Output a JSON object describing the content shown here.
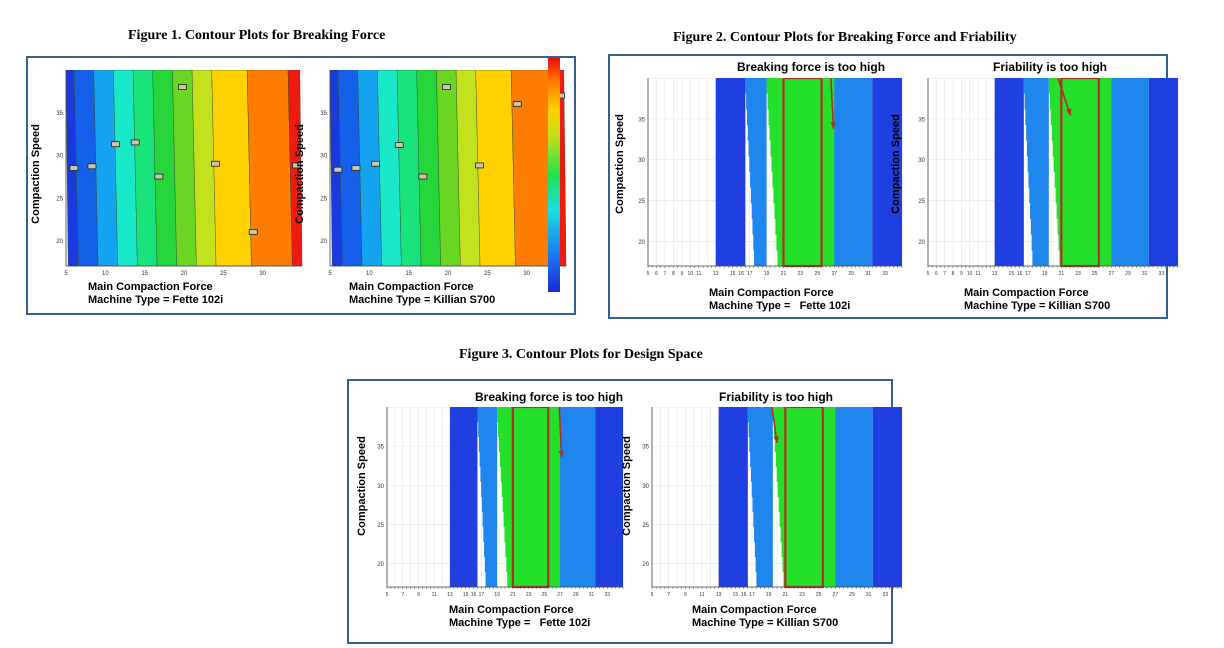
{
  "figures": {
    "fig1": {
      "title": "Figure 1.  Contour Plots for Breaking Force"
    },
    "fig2": {
      "title": "Figure 2. Contour Plots for Breaking Force and Friability"
    },
    "fig3": {
      "title": "Figure 3. Contour Plots for Design Space"
    }
  },
  "labels": {
    "ylabel": "Compaction Speed",
    "xlabel": "Main Compaction Force",
    "machine_fette": "Machine Type = Fette 102i",
    "machine_fette_spaced": "Machine Type =   Fette 102i",
    "machine_killian": "Machine Type = Killian S700",
    "annot_bf": "Breaking force is too high",
    "annot_fr": "Friability is too high"
  },
  "colors": {
    "dark_blue": "#1f3fe0",
    "mid_blue": "#1f86ee",
    "green": "#25e02b",
    "box_border": "#b03020",
    "arrow": "#b03020",
    "frame": "#34618f"
  },
  "chart_data": [
    {
      "type": "heatmap",
      "panel": "fig1-left",
      "title": "",
      "xlabel": "Main Compaction Force",
      "ylabel": "Compaction Speed",
      "subtitle": "Machine Type = Fette 102i",
      "xlim": [
        5,
        35
      ],
      "ylim": [
        17,
        40
      ],
      "xticks": [
        "5",
        "10",
        "15",
        "20",
        "25",
        "30"
      ],
      "yticks": [
        "20",
        "25",
        "30",
        "35"
      ],
      "bands": [
        {
          "x0": 5,
          "x1": 6.3,
          "color": "#1a3ae0"
        },
        {
          "x0": 6.3,
          "x1": 8.8,
          "color": "#1560e8"
        },
        {
          "x0": 8.8,
          "x1": 11.3,
          "color": "#14a3f0"
        },
        {
          "x0": 11.3,
          "x1": 13.8,
          "color": "#18e8c8"
        },
        {
          "x0": 13.8,
          "x1": 16.3,
          "color": "#19e37a"
        },
        {
          "x0": 16.3,
          "x1": 18.8,
          "color": "#27d63b"
        },
        {
          "x0": 18.8,
          "x1": 21.3,
          "color": "#6ad623"
        },
        {
          "x0": 21.3,
          "x1": 23.8,
          "color": "#c4e11e"
        },
        {
          "x0": 23.8,
          "x1": 28.3,
          "color": "#ffd100"
        },
        {
          "x0": 28.3,
          "x1": 33.5,
          "color": "#ff7d00"
        },
        {
          "x0": 33.5,
          "x1": 35,
          "color": "#ee1a10"
        }
      ],
      "points": [
        [
          6,
          28.5
        ],
        [
          8.3,
          28.7
        ],
        [
          11.3,
          31.3
        ],
        [
          13.8,
          31.5
        ],
        [
          16.8,
          27.5
        ],
        [
          19.8,
          38
        ],
        [
          24,
          29
        ],
        [
          28.8,
          21
        ],
        [
          34.3,
          28.8
        ]
      ]
    },
    {
      "type": "heatmap",
      "panel": "fig1-right",
      "title": "",
      "xlabel": "Main Compaction Force",
      "ylabel": "Compaction Speed",
      "subtitle": "Machine Type = Killian S700",
      "xlim": [
        5,
        35
      ],
      "ylim": [
        17,
        40
      ],
      "xticks": [
        "5",
        "10",
        "15",
        "20",
        "25",
        "30"
      ],
      "yticks": [
        "20",
        "25",
        "30",
        "35"
      ],
      "bands": [
        {
          "x0": 5,
          "x1": 6.3,
          "color": "#1a3ae0"
        },
        {
          "x0": 6.3,
          "x1": 8.8,
          "color": "#1560e8"
        },
        {
          "x0": 8.8,
          "x1": 11.3,
          "color": "#14a3f0"
        },
        {
          "x0": 11.3,
          "x1": 13.8,
          "color": "#18e8c8"
        },
        {
          "x0": 13.8,
          "x1": 16.3,
          "color": "#19e37a"
        },
        {
          "x0": 16.3,
          "x1": 18.8,
          "color": "#27d63b"
        },
        {
          "x0": 18.8,
          "x1": 21.3,
          "color": "#6ad623"
        },
        {
          "x0": 21.3,
          "x1": 23.8,
          "color": "#c4e11e"
        },
        {
          "x0": 23.8,
          "x1": 28.3,
          "color": "#ffd100"
        },
        {
          "x0": 28.3,
          "x1": 33.5,
          "color": "#ff7d00"
        },
        {
          "x0": 33.5,
          "x1": 35,
          "color": "#ee1a10"
        }
      ],
      "points": [
        [
          6,
          28.3
        ],
        [
          8.3,
          28.5
        ],
        [
          10.8,
          29
        ],
        [
          13.8,
          31.2
        ],
        [
          16.8,
          27.5
        ],
        [
          19.8,
          38
        ],
        [
          24,
          28.8
        ],
        [
          28.8,
          36
        ],
        [
          34.3,
          37
        ]
      ]
    },
    {
      "type": "heatmap",
      "panel": "fig2-left",
      "xlabel": "Main Compaction Force",
      "ylabel": "Compaction Speed",
      "subtitle": "Machine Type =   Fette 102i",
      "xlim": [
        5,
        35
      ],
      "ylim": [
        17,
        40
      ],
      "xticks": [
        "5",
        "6",
        "7",
        "8",
        "9",
        "10",
        "11",
        "13",
        "15",
        "16",
        "17",
        "19",
        "21",
        "23",
        "25",
        "27",
        "29",
        "31",
        "33"
      ],
      "yticks": [
        "20",
        "25",
        "30",
        "35"
      ],
      "regions": [
        {
          "name": "dark-left",
          "x0": 13,
          "x1": 16.5,
          "color": "#1f3fe0"
        },
        {
          "name": "mid-left",
          "x0": 16.5,
          "x1": 19,
          "color": "#1f86ee"
        },
        {
          "name": "green",
          "x0": 19,
          "x1": 27,
          "color": "#25e02b"
        },
        {
          "name": "mid-right",
          "x0": 27,
          "x1": 31.5,
          "color": "#1f86ee"
        },
        {
          "name": "dark-right",
          "x0": 31.5,
          "x1": 35,
          "color": "#1f3fe0"
        }
      ],
      "box": {
        "x0": 21,
        "x1": 25.5,
        "y0": 17,
        "y1": 40
      },
      "annotation": "Breaking force is too high"
    },
    {
      "type": "heatmap",
      "panel": "fig2-right",
      "xlabel": "Main Compaction Force",
      "ylabel": "Compaction Speed",
      "subtitle": "Machine Type = Killian S700",
      "xlim": [
        5,
        35
      ],
      "ylim": [
        17,
        40
      ],
      "xticks": [
        "5",
        "6",
        "7",
        "8",
        "9",
        "10",
        "11",
        "13",
        "15",
        "16",
        "17",
        "19",
        "21",
        "23",
        "25",
        "27",
        "29",
        "31",
        "33"
      ],
      "yticks": [
        "20",
        "25",
        "30",
        "35"
      ],
      "regions": [
        {
          "name": "dark-left",
          "x0": 13,
          "x1": 16.5,
          "color": "#1f3fe0"
        },
        {
          "name": "mid-left",
          "x0": 16.5,
          "x1": 19.5,
          "color": "#1f86ee"
        },
        {
          "name": "green",
          "x0": 19.5,
          "x1": 27,
          "color": "#25e02b"
        },
        {
          "name": "mid-right",
          "x0": 27,
          "x1": 31.5,
          "color": "#1f86ee"
        },
        {
          "name": "dark-right",
          "x0": 31.5,
          "x1": 35,
          "color": "#1f3fe0"
        }
      ],
      "box": {
        "x0": 21,
        "x1": 25.5,
        "y0": 17,
        "y1": 40
      },
      "annotation": "Friability is too high"
    },
    {
      "type": "heatmap",
      "panel": "fig3-left",
      "xlabel": "Main Compaction Force",
      "ylabel": "Compaction Speed",
      "subtitle": "Machine Type =   Fette 102i",
      "xlim": [
        5,
        35
      ],
      "ylim": [
        17,
        40
      ],
      "xticks": [
        "5",
        "7",
        "9",
        "11",
        "13",
        "15",
        "16",
        "17",
        "19",
        "21",
        "23",
        "25",
        "27",
        "29",
        "31",
        "33"
      ],
      "yticks": [
        "20",
        "25",
        "30",
        "35"
      ],
      "regions": [
        {
          "name": "dark-left",
          "x0": 13,
          "x1": 16.5,
          "color": "#1f3fe0"
        },
        {
          "name": "mid-left",
          "x0": 16.5,
          "x1": 19,
          "color": "#1f86ee"
        },
        {
          "name": "green",
          "x0": 19,
          "x1": 27,
          "color": "#25e02b"
        },
        {
          "name": "mid-right",
          "x0": 27,
          "x1": 31.5,
          "color": "#1f86ee"
        },
        {
          "name": "dark-right",
          "x0": 31.5,
          "x1": 35,
          "color": "#1f3fe0"
        }
      ],
      "box": {
        "x0": 21,
        "x1": 25.5,
        "y0": 17,
        "y1": 40
      },
      "annotation": "Breaking force is too high"
    },
    {
      "type": "heatmap",
      "panel": "fig3-right",
      "xlabel": "Main Compaction Force",
      "ylabel": "Compaction Speed",
      "subtitle": "Machine Type = Killian S700",
      "xlim": [
        5,
        35
      ],
      "ylim": [
        17,
        40
      ],
      "xticks": [
        "5",
        "7",
        "9",
        "11",
        "13",
        "15",
        "16",
        "17",
        "19",
        "21",
        "23",
        "25",
        "27",
        "29",
        "31",
        "33"
      ],
      "yticks": [
        "20",
        "25",
        "30",
        "35"
      ],
      "regions": [
        {
          "name": "dark-left",
          "x0": 13,
          "x1": 16.5,
          "color": "#1f3fe0"
        },
        {
          "name": "mid-left",
          "x0": 16.5,
          "x1": 19.5,
          "color": "#1f86ee"
        },
        {
          "name": "green",
          "x0": 19.5,
          "x1": 27,
          "color": "#25e02b"
        },
        {
          "name": "mid-right",
          "x0": 27,
          "x1": 31.5,
          "color": "#1f86ee"
        },
        {
          "name": "dark-right",
          "x0": 31.5,
          "x1": 35,
          "color": "#1f3fe0"
        }
      ],
      "box": {
        "x0": 21,
        "x1": 25.5,
        "y0": 17,
        "y1": 40
      },
      "annotation": "Friability is too high"
    }
  ]
}
